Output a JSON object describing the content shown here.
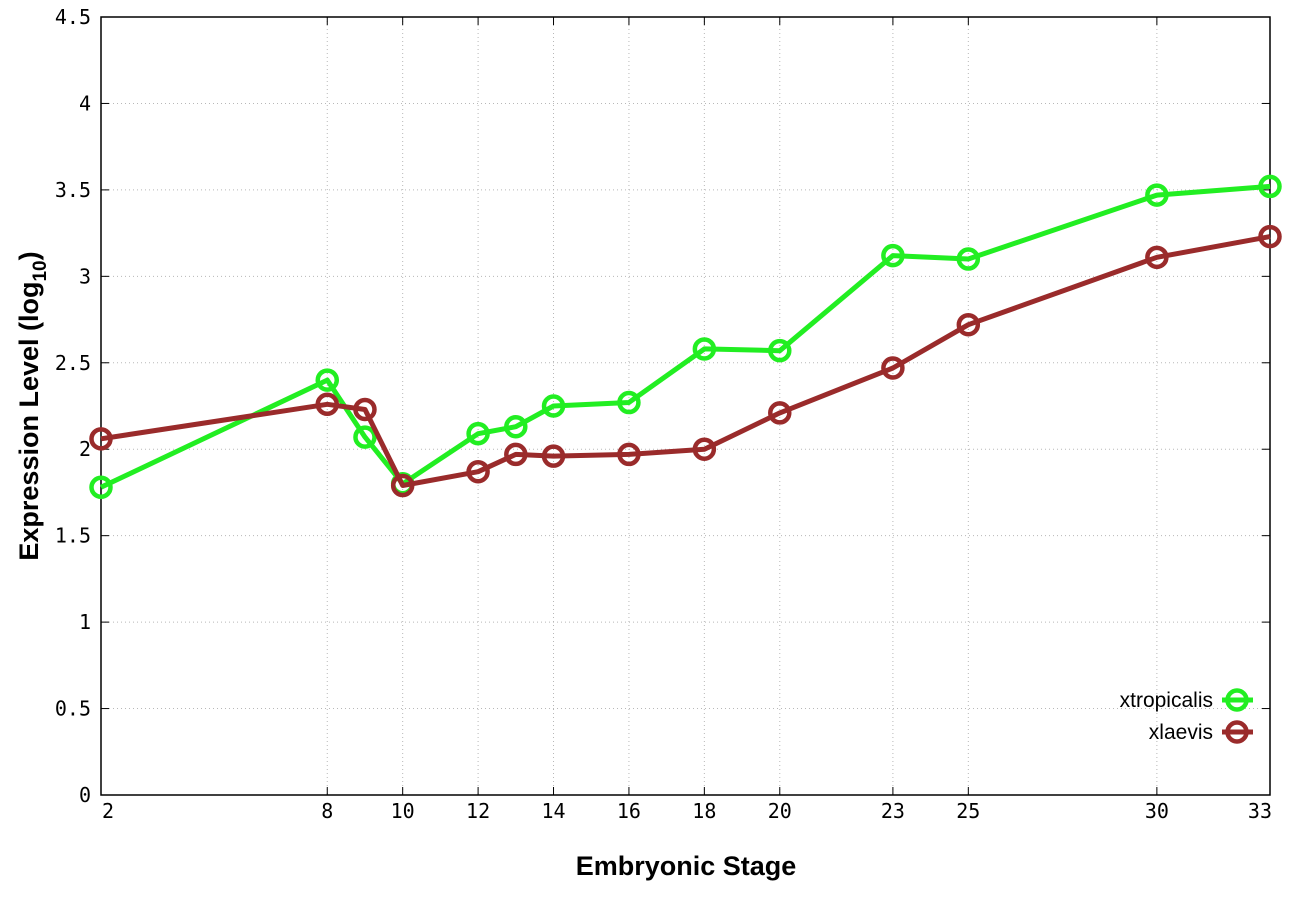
{
  "chart_data": {
    "type": "line",
    "title": "",
    "xlabel": "Embryonic Stage",
    "ylabel": "Expression Level (log10)",
    "ylabel_main": "Expression Level (log",
    "ylabel_sub": "10",
    "ylabel_close": ")",
    "xlim": [
      2,
      33
    ],
    "ylim": [
      0,
      4.5
    ],
    "x_ticks": [
      2,
      8,
      10,
      12,
      14,
      16,
      18,
      20,
      23,
      25,
      30,
      33
    ],
    "y_ticks": [
      "0",
      "0.5",
      "1",
      "1.5",
      "2",
      "2.5",
      "3",
      "3.5",
      "4",
      "4.5"
    ],
    "grid": true,
    "legend_position": "bottom-right",
    "series": [
      {
        "name": "xtropicalis",
        "color": "#22ee22",
        "x": [
          2,
          8,
          9,
          10,
          12,
          13,
          14,
          16,
          18,
          20,
          23,
          25,
          30,
          33
        ],
        "y": [
          1.78,
          2.4,
          2.07,
          1.8,
          2.09,
          2.13,
          2.25,
          2.27,
          2.58,
          2.57,
          3.12,
          3.1,
          3.47,
          3.52
        ]
      },
      {
        "name": "xlaevis",
        "color": "#9a2b2b",
        "x": [
          2,
          8,
          9,
          10,
          12,
          13,
          14,
          16,
          18,
          20,
          23,
          25,
          30,
          33
        ],
        "y": [
          2.06,
          2.26,
          2.23,
          1.79,
          1.87,
          1.97,
          1.96,
          1.97,
          2.0,
          2.21,
          2.47,
          2.72,
          3.11,
          3.23
        ]
      }
    ]
  }
}
